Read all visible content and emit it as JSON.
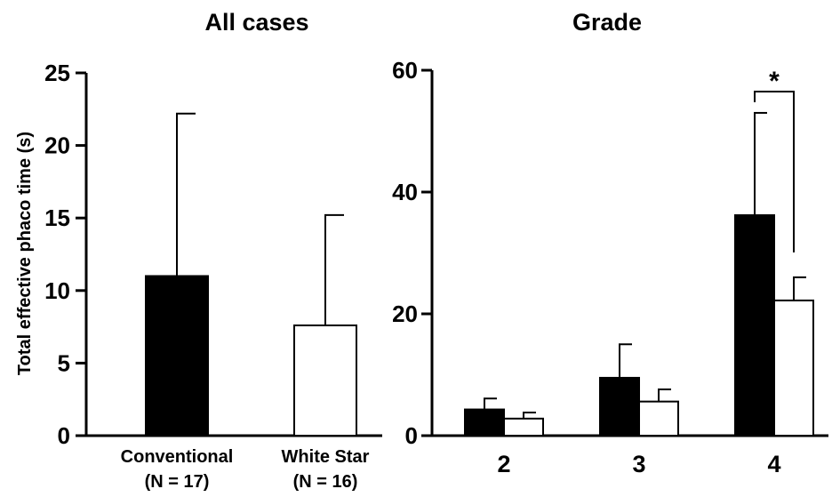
{
  "chart_data": [
    {
      "type": "bar",
      "title": "All cases",
      "ylabel": "Total effective phaco time  (s)",
      "ylim": [
        0,
        25
      ],
      "yticks": [
        0,
        5,
        10,
        15,
        20,
        25
      ],
      "categories": [
        {
          "line1": "Conventional",
          "line2": "(N = 17)"
        },
        {
          "line1": "White Star",
          "line2": "(N = 16)"
        }
      ],
      "values": [
        11.0,
        7.6
      ],
      "errors_upper": [
        22.2,
        15.2
      ],
      "colors": [
        "#000000",
        "#ffffff"
      ]
    },
    {
      "type": "bar",
      "title": "Grade",
      "ylim": [
        0,
        60
      ],
      "yticks": [
        0,
        20,
        40,
        60
      ],
      "categories": [
        "2",
        "3",
        "4"
      ],
      "series": [
        {
          "values": [
            4.3,
            9.5,
            36.2
          ],
          "errors_upper": [
            6.1,
            15.0,
            53.0
          ],
          "color": "#000000"
        },
        {
          "values": [
            2.8,
            5.6,
            22.2
          ],
          "errors_upper": [
            3.8,
            7.6,
            26.0
          ],
          "color": "#ffffff"
        }
      ],
      "annotation": "*"
    }
  ]
}
